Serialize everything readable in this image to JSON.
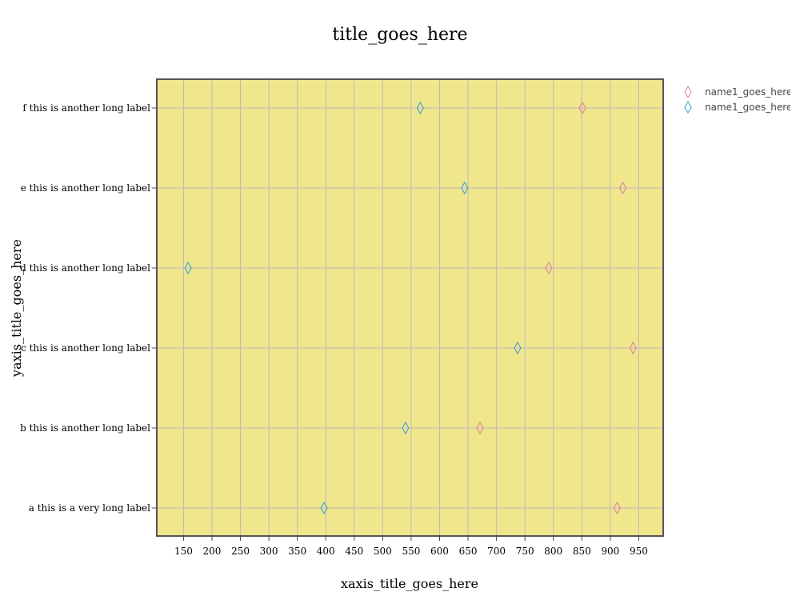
{
  "chart_data": {
    "type": "scatter",
    "title": "title_goes_here",
    "xlabel": "xaxis_title_goes_here",
    "ylabel": "yaxis_title_goes_here",
    "xlim": [
      103,
      993
    ],
    "x_ticks": [
      150,
      200,
      250,
      300,
      350,
      400,
      450,
      500,
      550,
      600,
      650,
      700,
      750,
      800,
      850,
      900,
      950
    ],
    "categories": [
      "a this is a very long label",
      "b this is another long label",
      "c this is another long label",
      "d this is another long label",
      "e this is another long label",
      "f this is another long label"
    ],
    "series": [
      {
        "name": "name1_goes_here",
        "color": "#e07a9a",
        "marker": "diamond-open",
        "values": [
          912,
          671,
          940,
          792,
          922,
          851
        ]
      },
      {
        "name": "name1_goes_here",
        "color": "#2e9ad8",
        "marker": "diamond-open",
        "values": [
          397,
          540,
          737,
          158,
          644,
          566
        ]
      }
    ],
    "plot_background": "#f0e68c",
    "grid_color": "#bbbbbb",
    "grid": true,
    "legend_position": "top-right"
  }
}
